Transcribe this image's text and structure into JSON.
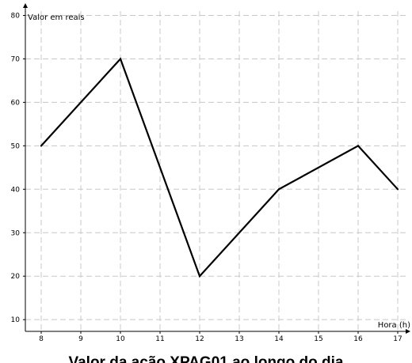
{
  "chart_data": {
    "type": "line",
    "title": "",
    "xlabel": "Hora (h)",
    "ylabel": "Valor em reais",
    "xlim": [
      7.6,
      17.2
    ],
    "ylim": [
      7.3,
      81.0
    ],
    "x_ticks": [
      8,
      9,
      10,
      11,
      12,
      13,
      14,
      15,
      16,
      17
    ],
    "y_ticks": [
      10,
      20,
      30,
      40,
      50,
      60,
      70,
      80
    ],
    "grid": true,
    "series": [
      {
        "x": [
          8,
          10,
          12,
          14,
          16,
          17
        ],
        "y": [
          50,
          70,
          20,
          40,
          50,
          40
        ],
        "color": "#000000"
      }
    ]
  },
  "caption": "Valor da ação XPAG01 ao longo do dia"
}
